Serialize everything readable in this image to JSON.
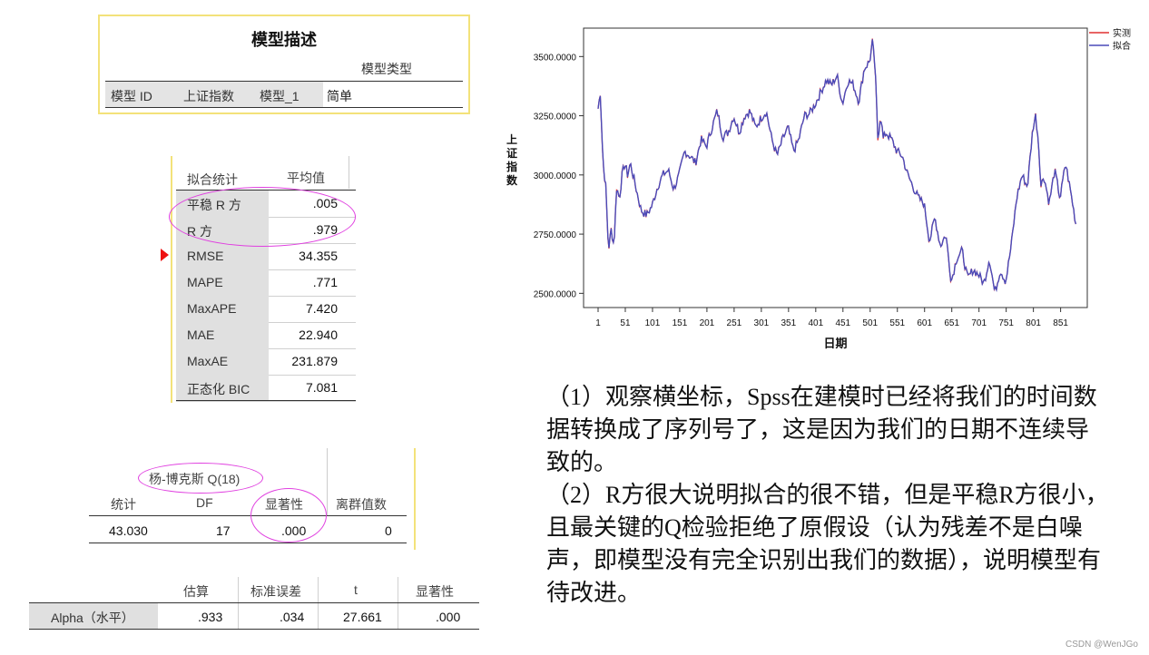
{
  "model_desc": {
    "title": "模型描述",
    "type_header": "模型类型",
    "cells": [
      "模型 ID",
      "上证指数",
      "模型_1"
    ],
    "type_value": "简单"
  },
  "fit_stats": {
    "header_stat": "拟合统计",
    "header_mean": "平均值",
    "rows": [
      {
        "label": "平稳 R 方",
        "value": ".005"
      },
      {
        "label": "R 方",
        "value": ".979"
      },
      {
        "label": "RMSE",
        "value": "34.355"
      },
      {
        "label": "MAPE",
        "value": ".771"
      },
      {
        "label": "MaxAPE",
        "value": "7.420"
      },
      {
        "label": "MAE",
        "value": "22.940"
      },
      {
        "label": "MaxAE",
        "value": "231.879"
      },
      {
        "label": "正态化 BIC",
        "value": "7.081"
      }
    ]
  },
  "ljung_box": {
    "title": "杨-博克斯 Q(18)",
    "headers": [
      "统计",
      "DF",
      "显著性",
      "离群值数"
    ],
    "values": [
      "43.030",
      "17",
      ".000",
      "0"
    ]
  },
  "params": {
    "headers": [
      "估算",
      "标准误差",
      "t",
      "显著性"
    ],
    "row_label": "Alpha（水平）",
    "values": [
      ".933",
      ".034",
      "27.661",
      ".000"
    ]
  },
  "chart_data": {
    "type": "line",
    "title": "",
    "xlabel": "日期",
    "ylabel": "上证指数",
    "xlim": [
      1,
      880
    ],
    "ylim": [
      2440,
      3620
    ],
    "x_ticks": [
      1,
      51,
      101,
      151,
      201,
      251,
      301,
      351,
      401,
      451,
      501,
      551,
      601,
      651,
      701,
      751,
      801,
      851
    ],
    "y_ticks": [
      2500,
      2750,
      3000,
      3250,
      3500
    ],
    "y_tick_labels": [
      "2500.0000",
      "2750.0000",
      "3000.0000",
      "3250.0000",
      "3500.0000"
    ],
    "legend": {
      "position": "top-right",
      "entries": [
        "实测",
        "拟合"
      ]
    },
    "colors": {
      "observed": "#e03030",
      "fitted": "#4a4ab8"
    },
    "anchors": {
      "x": [
        1,
        5,
        10,
        15,
        20,
        25,
        30,
        35,
        40,
        45,
        50,
        55,
        60,
        70,
        80,
        90,
        100,
        110,
        120,
        130,
        140,
        150,
        160,
        170,
        180,
        190,
        200,
        210,
        220,
        230,
        240,
        250,
        260,
        270,
        280,
        290,
        300,
        310,
        320,
        330,
        340,
        350,
        360,
        370,
        380,
        390,
        400,
        410,
        420,
        430,
        440,
        450,
        460,
        470,
        480,
        490,
        500,
        505,
        510,
        515,
        520,
        525,
        530,
        540,
        550,
        560,
        570,
        580,
        590,
        600,
        610,
        620,
        630,
        640,
        650,
        660,
        670,
        680,
        690,
        700,
        710,
        720,
        730,
        740,
        750,
        760,
        770,
        780,
        790,
        800,
        805,
        810,
        815,
        820,
        830,
        840,
        850,
        860,
        870,
        880
      ],
      "y": [
        3280,
        3350,
        3050,
        2950,
        2680,
        2770,
        2700,
        2950,
        2900,
        3000,
        3050,
        3000,
        3050,
        2950,
        2850,
        2830,
        2870,
        2950,
        3000,
        3020,
        2940,
        3000,
        3100,
        3080,
        3050,
        3150,
        3120,
        3200,
        3270,
        3160,
        3180,
        3250,
        3180,
        3250,
        3270,
        3200,
        3240,
        3270,
        3150,
        3080,
        3150,
        3200,
        3100,
        3150,
        3250,
        3260,
        3300,
        3350,
        3400,
        3380,
        3420,
        3300,
        3400,
        3380,
        3310,
        3450,
        3480,
        3560,
        3450,
        3150,
        3260,
        3150,
        3180,
        3150,
        3100,
        3080,
        3000,
        2950,
        2900,
        2880,
        2720,
        2820,
        2700,
        2750,
        2550,
        2650,
        2680,
        2560,
        2600,
        2580,
        2540,
        2650,
        2500,
        2600,
        2550,
        2700,
        2900,
        3000,
        2950,
        3200,
        3250,
        3150,
        2950,
        3000,
        2880,
        3020,
        2900,
        3050,
        2920,
        2780
      ]
    }
  },
  "explanation": [
    "（1）观察横坐标，Spss在建模时已经将我们的时间数据转换成了序列号了，这是因为我们的日期不连续导致的。",
    "（2）R方很大说明拟合的很不错，但是平稳R方很小，且最关键的Q检验拒绝了原假设（认为残差不是白噪声，即模型没有完全识别出我们的数据），说明模型有待改进。"
  ],
  "watermark": "CSDN @WenJGo"
}
